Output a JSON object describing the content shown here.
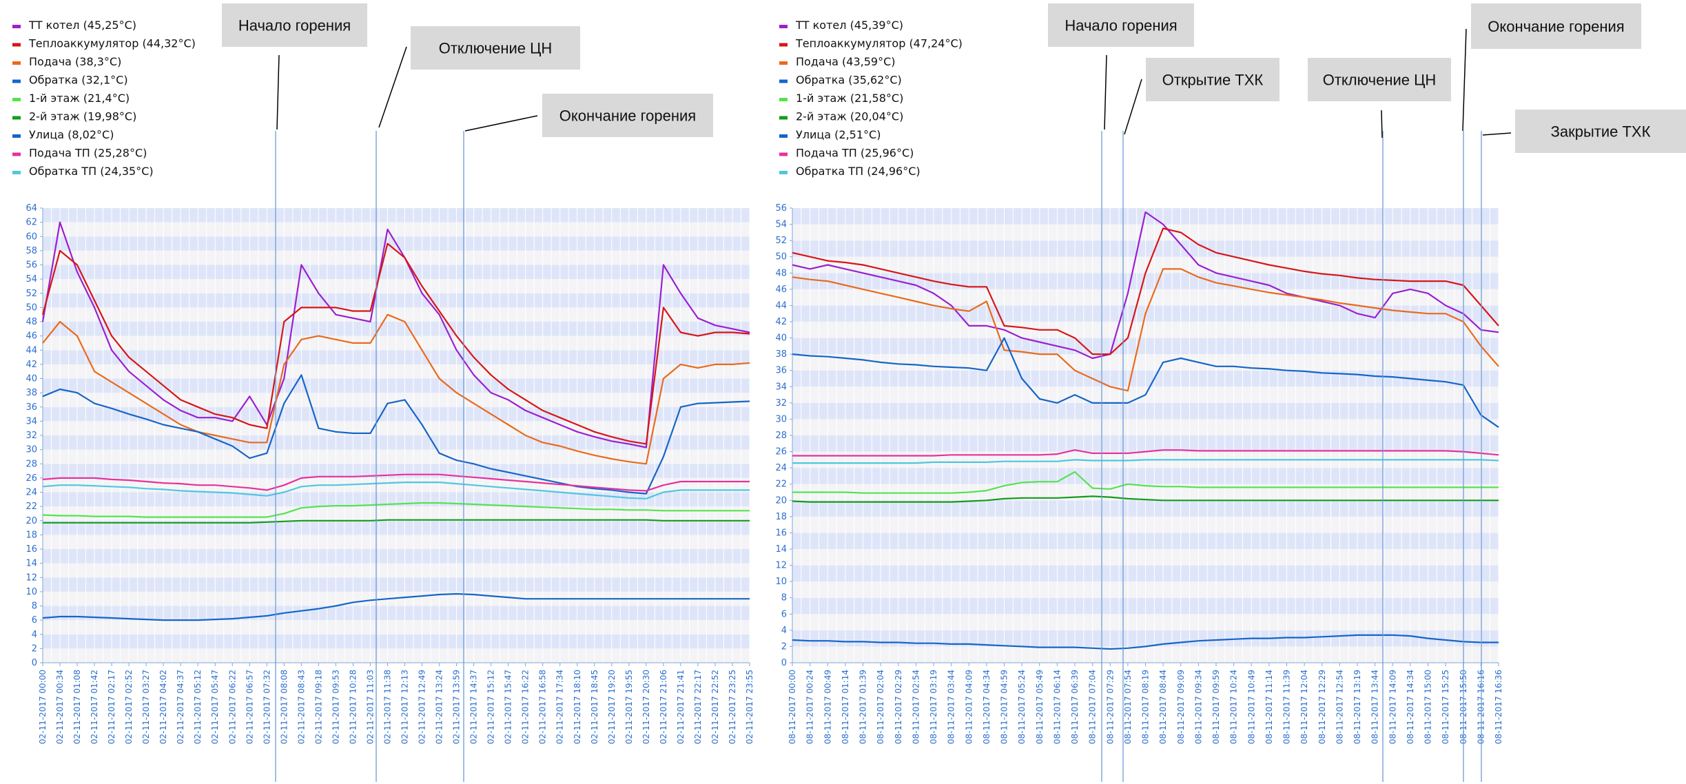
{
  "chart_data": [
    {
      "type": "line",
      "ylim": [
        0,
        64
      ],
      "ytick_step": 2,
      "x": [
        "02-11-2017 00:00",
        "02-11-2017 00:34",
        "02-11-2017 01:08",
        "02-11-2017 01:42",
        "02-11-2017 02:17",
        "02-11-2017 02:52",
        "02-11-2017 03:27",
        "02-11-2017 04:02",
        "02-11-2017 04:37",
        "02-11-2017 05:12",
        "02-11-2017 05:47",
        "02-11-2017 06:22",
        "02-11-2017 06:57",
        "02-11-2017 07:32",
        "02-11-2017 08:08",
        "02-11-2017 08:43",
        "02-11-2017 09:18",
        "02-11-2017 09:53",
        "02-11-2017 10:28",
        "02-11-2017 11:03",
        "02-11-2017 11:38",
        "02-11-2017 12:13",
        "02-11-2017 12:49",
        "02-11-2017 13:24",
        "02-11-2017 13:59",
        "02-11-2017 14:37",
        "02-11-2017 15:12",
        "02-11-2017 15:47",
        "02-11-2017 16:22",
        "02-11-2017 16:58",
        "02-11-2017 17:34",
        "02-11-2017 18:10",
        "02-11-2017 18:45",
        "02-11-2017 19:20",
        "02-11-2017 19:55",
        "02-11-2017 20:30",
        "02-11-2017 21:06",
        "02-11-2017 21:41",
        "02-11-2017 22:17",
        "02-11-2017 22:52",
        "02-11-2017 23:25",
        "02-11-2017 23:55"
      ],
      "series": [
        {
          "name": "ТТ котел (45,25°C)",
          "color": "#9b1fd1",
          "values": [
            48,
            62,
            55,
            50,
            44,
            41,
            39,
            37,
            35.5,
            34.5,
            34.5,
            34,
            37.5,
            33.5,
            40,
            56,
            52,
            49,
            48.5,
            48,
            61,
            57,
            52,
            49,
            44,
            40.5,
            38,
            37,
            35.5,
            34.5,
            33.5,
            32.5,
            31.8,
            31.2,
            30.8,
            30.3,
            56,
            52,
            48.5,
            47.5,
            47,
            46.5
          ]
        },
        {
          "name": "Теплоаккумулятор (44,32°C)",
          "color": "#d81515",
          "values": [
            49,
            58,
            56,
            51,
            46,
            43,
            41,
            39,
            37,
            36,
            35,
            34.5,
            33.5,
            33,
            48,
            50,
            50,
            50,
            49.5,
            49.5,
            59,
            57,
            53,
            49.5,
            46,
            43,
            40.5,
            38.5,
            37,
            35.5,
            34.5,
            33.5,
            32.5,
            31.8,
            31.2,
            30.8,
            50,
            46.5,
            46,
            46.5,
            46.5,
            46.3
          ]
        },
        {
          "name": "Подача (38,3°C)",
          "color": "#ea6a1b",
          "values": [
            45,
            48,
            46,
            41,
            39.5,
            38,
            36.5,
            35,
            33.5,
            32.5,
            32,
            31.5,
            31,
            31,
            42,
            45.5,
            46,
            45.5,
            45,
            45,
            49,
            48,
            44,
            40,
            38,
            36.5,
            35,
            33.5,
            32,
            31,
            30.5,
            29.8,
            29.2,
            28.7,
            28.3,
            28,
            40,
            42,
            41.5,
            42,
            42,
            42.2
          ]
        },
        {
          "name": "Обратка (32,1°C)",
          "color": "#1565c8",
          "values": [
            37.5,
            38.5,
            38,
            36.5,
            35.8,
            35,
            34.3,
            33.5,
            33,
            32.5,
            31.5,
            30.5,
            28.8,
            29.5,
            36.5,
            40.5,
            33,
            32.5,
            32.3,
            32.3,
            36.5,
            37,
            33.5,
            29.5,
            28.5,
            28,
            27.3,
            26.8,
            26.3,
            25.8,
            25.3,
            24.8,
            24.5,
            24.3,
            24,
            23.8,
            29,
            36,
            36.5,
            36.6,
            36.7,
            36.8
          ]
        },
        {
          "name": "1-й этаж (21,4°C)",
          "color": "#54e34f",
          "values": [
            20.8,
            20.7,
            20.7,
            20.6,
            20.6,
            20.6,
            20.5,
            20.5,
            20.5,
            20.5,
            20.5,
            20.5,
            20.5,
            20.5,
            21,
            21.8,
            22,
            22.1,
            22.1,
            22.2,
            22.3,
            22.4,
            22.5,
            22.5,
            22.4,
            22.3,
            22.2,
            22.1,
            22,
            21.9,
            21.8,
            21.7,
            21.6,
            21.6,
            21.5,
            21.5,
            21.4,
            21.4,
            21.4,
            21.4,
            21.4,
            21.4
          ]
        },
        {
          "name": "2-й этаж (19,98°C)",
          "color": "#139c1c",
          "values": [
            19.7,
            19.7,
            19.7,
            19.7,
            19.7,
            19.7,
            19.7,
            19.7,
            19.7,
            19.7,
            19.7,
            19.7,
            19.7,
            19.8,
            19.9,
            20,
            20,
            20,
            20,
            20,
            20.1,
            20.1,
            20.1,
            20.1,
            20.1,
            20.1,
            20.1,
            20.1,
            20.1,
            20.1,
            20.1,
            20.1,
            20.1,
            20.1,
            20.1,
            20.1,
            20,
            20,
            20,
            20,
            20,
            20
          ]
        },
        {
          "name": "Улица (8,02°C)",
          "color": "#1565c8",
          "values": [
            6.3,
            6.5,
            6.5,
            6.4,
            6.3,
            6.2,
            6.1,
            6,
            6,
            6,
            6.1,
            6.2,
            6.4,
            6.6,
            7,
            7.3,
            7.6,
            8,
            8.5,
            8.8,
            9,
            9.2,
            9.4,
            9.6,
            9.7,
            9.6,
            9.4,
            9.2,
            9,
            9,
            9,
            9,
            9,
            9,
            9,
            9,
            9,
            9,
            9,
            9,
            9,
            9
          ]
        },
        {
          "name": "Подача ТП (25,28°C)",
          "color": "#e8309a",
          "values": [
            25.8,
            26,
            26,
            26,
            25.8,
            25.7,
            25.5,
            25.3,
            25.2,
            25,
            25,
            24.8,
            24.6,
            24.3,
            25,
            26,
            26.2,
            26.2,
            26.2,
            26.3,
            26.4,
            26.5,
            26.5,
            26.5,
            26.3,
            26.1,
            25.9,
            25.7,
            25.5,
            25.3,
            25.1,
            24.9,
            24.7,
            24.5,
            24.3,
            24.2,
            25,
            25.5,
            25.5,
            25.5,
            25.5,
            25.5
          ]
        },
        {
          "name": "Обратка ТП (24,35°C)",
          "color": "#4fc6e0",
          "values": [
            24.8,
            25,
            25,
            24.9,
            24.8,
            24.7,
            24.5,
            24.4,
            24.2,
            24.1,
            24,
            23.9,
            23.7,
            23.5,
            24,
            24.8,
            25,
            25,
            25.1,
            25.2,
            25.3,
            25.4,
            25.4,
            25.4,
            25.2,
            25,
            24.8,
            24.6,
            24.4,
            24.2,
            24,
            23.8,
            23.6,
            23.4,
            23.2,
            23.1,
            24,
            24.3,
            24.3,
            24.3,
            24.3,
            24.3
          ]
        }
      ],
      "markers": [
        {
          "x": "02-11-2017 07:57",
          "label": "Начало горения"
        },
        {
          "x": "02-11-2017 11:10",
          "label": "Отключение ЦН"
        },
        {
          "x": "02-11-2017 14:04",
          "label": "Окончание горения"
        }
      ]
    },
    {
      "type": "line",
      "ylim": [
        0,
        56
      ],
      "ytick_step": 2,
      "x": [
        "08-11-2017 00:00",
        "08-11-2017 00:24",
        "08-11-2017 00:49",
        "08-11-2017 01:14",
        "08-11-2017 01:39",
        "08-11-2017 02:04",
        "08-11-2017 02:29",
        "08-11-2017 02:54",
        "08-11-2017 03:19",
        "08-11-2017 03:44",
        "08-11-2017 04:09",
        "08-11-2017 04:34",
        "08-11-2017 04:59",
        "08-11-2017 05:24",
        "08-11-2017 05:49",
        "08-11-2017 06:14",
        "08-11-2017 06:39",
        "08-11-2017 07:04",
        "08-11-2017 07:29",
        "08-11-2017 07:54",
        "08-11-2017 08:19",
        "08-11-2017 08:44",
        "08-11-2017 09:09",
        "08-11-2017 09:34",
        "08-11-2017 09:59",
        "08-11-2017 10:24",
        "08-11-2017 10:49",
        "08-11-2017 11:14",
        "08-11-2017 11:39",
        "08-11-2017 12:04",
        "08-11-2017 12:29",
        "08-11-2017 12:54",
        "08-11-2017 13:19",
        "08-11-2017 13:44",
        "08-11-2017 14:09",
        "08-11-2017 14:34",
        "08-11-2017 15:00",
        "08-11-2017 15:25",
        "08-11-2017 15:50",
        "08-11-2017 16:16",
        "08-11-2017 16:36"
      ],
      "series": [
        {
          "name": "ТТ котел (45,39°C)",
          "color": "#9b1fd1",
          "values": [
            49,
            48.5,
            49,
            48.5,
            48,
            47.5,
            47,
            46.5,
            45.5,
            44,
            41.5,
            41.5,
            41,
            40,
            39.5,
            39,
            38.5,
            37.5,
            38,
            45.5,
            55.5,
            54,
            51.5,
            49,
            48,
            47.5,
            47,
            46.5,
            45.5,
            45,
            44.5,
            44,
            43,
            42.5,
            45.5,
            46,
            45.5,
            44,
            43,
            41,
            40.7
          ]
        },
        {
          "name": "Теплоаккумулятор (47,24°C)",
          "color": "#d81515",
          "values": [
            50.5,
            50,
            49.5,
            49.3,
            49,
            48.5,
            48,
            47.5,
            47,
            46.6,
            46.3,
            46.3,
            41.5,
            41.3,
            41,
            41,
            40,
            38,
            38,
            40,
            48,
            53.5,
            53,
            51.5,
            50.5,
            50,
            49.5,
            49,
            48.6,
            48.2,
            47.9,
            47.7,
            47.4,
            47.2,
            47.1,
            47,
            47,
            47,
            46.5,
            44,
            41.5
          ]
        },
        {
          "name": "Подача (43,59°C)",
          "color": "#ea6a1b",
          "values": [
            47.5,
            47.2,
            47,
            46.5,
            46,
            45.5,
            45,
            44.5,
            44,
            43.6,
            43.3,
            44.5,
            38.5,
            38.3,
            38,
            38,
            36,
            35,
            34,
            33.5,
            43,
            48.5,
            48.5,
            47.5,
            46.8,
            46.4,
            46,
            45.6,
            45.3,
            45,
            44.7,
            44.3,
            44,
            43.7,
            43.4,
            43.2,
            43,
            43,
            42,
            39,
            36.5
          ]
        },
        {
          "name": "Обратка (35,62°C)",
          "color": "#1565c8",
          "values": [
            38,
            37.8,
            37.7,
            37.5,
            37.3,
            37,
            36.8,
            36.7,
            36.5,
            36.4,
            36.3,
            36,
            40,
            35,
            32.5,
            32,
            33,
            32,
            32,
            32,
            33,
            37,
            37.5,
            37,
            36.5,
            36.5,
            36.3,
            36.2,
            36,
            35.9,
            35.7,
            35.6,
            35.5,
            35.3,
            35.2,
            35,
            34.8,
            34.6,
            34.2,
            30.5,
            29
          ]
        },
        {
          "name": "1-й этаж (21,58°C)",
          "color": "#54e34f",
          "values": [
            21,
            21,
            21,
            21,
            20.9,
            20.9,
            20.9,
            20.9,
            20.9,
            20.9,
            21,
            21.2,
            21.8,
            22.2,
            22.3,
            22.3,
            23.5,
            21.5,
            21.4,
            22,
            21.8,
            21.7,
            21.7,
            21.6,
            21.6,
            21.6,
            21.6,
            21.6,
            21.6,
            21.6,
            21.6,
            21.6,
            21.6,
            21.6,
            21.6,
            21.6,
            21.6,
            21.6,
            21.6,
            21.6,
            21.6
          ]
        },
        {
          "name": "2-й этаж (20,04°C)",
          "color": "#139c1c",
          "values": [
            19.9,
            19.8,
            19.8,
            19.8,
            19.8,
            19.8,
            19.8,
            19.8,
            19.8,
            19.8,
            19.9,
            20,
            20.2,
            20.3,
            20.3,
            20.3,
            20.4,
            20.5,
            20.4,
            20.2,
            20.1,
            20,
            20,
            20,
            20,
            20,
            20,
            20,
            20,
            20,
            20,
            20,
            20,
            20,
            20,
            20,
            20,
            20,
            20,
            20,
            20
          ]
        },
        {
          "name": "Улица (2,51°C)",
          "color": "#1565c8",
          "values": [
            2.8,
            2.7,
            2.7,
            2.6,
            2.6,
            2.5,
            2.5,
            2.4,
            2.4,
            2.3,
            2.3,
            2.2,
            2.1,
            2,
            1.9,
            1.9,
            1.9,
            1.8,
            1.7,
            1.8,
            2,
            2.3,
            2.5,
            2.7,
            2.8,
            2.9,
            3,
            3,
            3.1,
            3.1,
            3.2,
            3.3,
            3.4,
            3.4,
            3.4,
            3.3,
            3,
            2.8,
            2.6,
            2.5,
            2.5
          ]
        },
        {
          "name": "Подача ТП (25,96°C)",
          "color": "#e8309a",
          "values": [
            25.5,
            25.5,
            25.5,
            25.5,
            25.5,
            25.5,
            25.5,
            25.5,
            25.5,
            25.6,
            25.6,
            25.6,
            25.6,
            25.6,
            25.6,
            25.7,
            26.2,
            25.8,
            25.8,
            25.8,
            26,
            26.2,
            26.2,
            26.1,
            26.1,
            26.1,
            26.1,
            26.1,
            26.1,
            26.1,
            26.1,
            26.1,
            26.1,
            26.1,
            26.1,
            26.1,
            26.1,
            26.1,
            26,
            25.8,
            25.6
          ]
        },
        {
          "name": "Обратка ТП (24,96°C)",
          "color": "#4fc6e0",
          "values": [
            24.6,
            24.6,
            24.6,
            24.6,
            24.6,
            24.6,
            24.6,
            24.6,
            24.7,
            24.7,
            24.7,
            24.7,
            24.8,
            24.8,
            24.8,
            24.8,
            25,
            24.9,
            24.9,
            24.9,
            25,
            25,
            25,
            25,
            25,
            25,
            25,
            25,
            25,
            25,
            25,
            25,
            25,
            25,
            25,
            25,
            25,
            25,
            25,
            25,
            24.9
          ]
        }
      ],
      "markers": [
        {
          "x": "08-11-2017 07:29",
          "label": "Начало горения"
        },
        {
          "x": "08-11-2017 07:48",
          "label": "Открытие ТХК"
        },
        {
          "x": "08-11-2017 13:45",
          "label": "Отключение ЦН"
        },
        {
          "x": "08-11-2017 15:53",
          "label": "Окончание горения"
        },
        {
          "x": "08-11-2017 16:12",
          "label": "Закрытие ТХК"
        }
      ]
    }
  ]
}
